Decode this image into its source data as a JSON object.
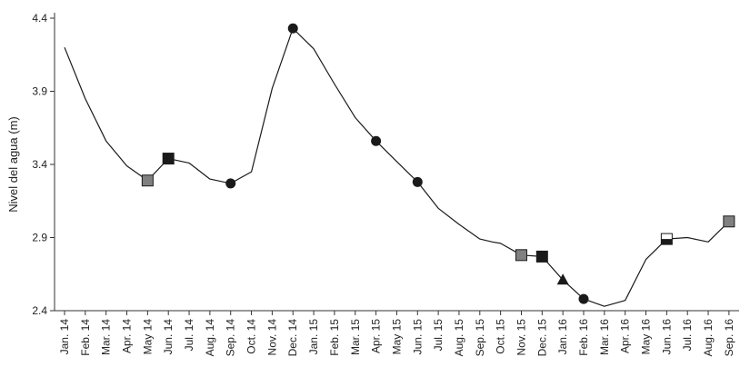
{
  "chart_data": {
    "type": "line",
    "title": "",
    "xlabel": "",
    "ylabel": "Nivel del agua (m)",
    "ylim": [
      2.4,
      4.4
    ],
    "yticks": [
      "2.4",
      "2.9",
      "3.4",
      "3.9",
      "4.4"
    ],
    "grid": false,
    "categories": [
      "Jan. 14",
      "Feb. 14",
      "Mar. 14",
      "Apr. 14",
      "May 14",
      "Jun. 14",
      "Jul. 14",
      "Aug. 14",
      "Sep. 14",
      "Oct. 14",
      "Nov. 14",
      "Dec. 14",
      "Jan. 15",
      "Feb. 15",
      "Mar. 15",
      "Apr. 15",
      "May 15",
      "Jun. 15",
      "Jul. 15",
      "Aug. 15",
      "Sep. 15",
      "Oct. 15",
      "Nov. 15",
      "Dec. 15",
      "Jan. 16",
      "Feb. 16",
      "Mar. 16",
      "Apr. 16",
      "May 16",
      "Jun. 16",
      "Jul. 16",
      "Aug. 16",
      "Sep. 16"
    ],
    "line": [
      {
        "x": 0.0,
        "y": 4.2
      },
      {
        "x": 1.0,
        "y": 3.85
      },
      {
        "x": 2.0,
        "y": 3.56
      },
      {
        "x": 3.0,
        "y": 3.39
      },
      {
        "x": 4.0,
        "y": 3.29
      },
      {
        "x": 5.0,
        "y": 3.44
      },
      {
        "x": 6.0,
        "y": 3.41
      },
      {
        "x": 7.0,
        "y": 3.3
      },
      {
        "x": 8.0,
        "y": 3.27
      },
      {
        "x": 9.0,
        "y": 3.35
      },
      {
        "x": 10.0,
        "y": 3.92
      },
      {
        "x": 11.0,
        "y": 4.33
      },
      {
        "x": 12.0,
        "y": 4.19
      },
      {
        "x": 13.0,
        "y": 3.95
      },
      {
        "x": 14.0,
        "y": 3.72
      },
      {
        "x": 15.0,
        "y": 3.56
      },
      {
        "x": 16.0,
        "y": 3.42
      },
      {
        "x": 17.0,
        "y": 3.28
      },
      {
        "x": 18.0,
        "y": 3.1
      },
      {
        "x": 19.0,
        "y": 2.99
      },
      {
        "x": 20.0,
        "y": 2.89
      },
      {
        "x": 20.6,
        "y": 2.87
      },
      {
        "x": 21.0,
        "y": 2.86
      },
      {
        "x": 22.0,
        "y": 2.78
      },
      {
        "x": 23.0,
        "y": 2.77
      },
      {
        "x": 24.0,
        "y": 2.61
      },
      {
        "x": 25.0,
        "y": 2.48
      },
      {
        "x": 26.0,
        "y": 2.43
      },
      {
        "x": 27.0,
        "y": 2.47
      },
      {
        "x": 28.0,
        "y": 2.75
      },
      {
        "x": 29.0,
        "y": 2.89
      },
      {
        "x": 30.0,
        "y": 2.9
      },
      {
        "x": 31.0,
        "y": 2.87
      },
      {
        "x": 32.0,
        "y": 3.01
      }
    ],
    "markers": [
      {
        "x": 4.0,
        "y": 3.29,
        "shape": "square",
        "fill": "#808080"
      },
      {
        "x": 5.0,
        "y": 3.44,
        "shape": "square",
        "fill": "#1a1a1a"
      },
      {
        "x": 8.0,
        "y": 3.27,
        "shape": "circle",
        "fill": "#1a1a1a"
      },
      {
        "x": 11.0,
        "y": 4.33,
        "shape": "circle",
        "fill": "#1a1a1a"
      },
      {
        "x": 15.0,
        "y": 3.56,
        "shape": "circle",
        "fill": "#1a1a1a"
      },
      {
        "x": 17.0,
        "y": 3.28,
        "shape": "circle",
        "fill": "#1a1a1a"
      },
      {
        "x": 22.0,
        "y": 2.78,
        "shape": "square",
        "fill": "#808080"
      },
      {
        "x": 23.0,
        "y": 2.77,
        "shape": "square",
        "fill": "#1a1a1a"
      },
      {
        "x": 24.0,
        "y": 2.61,
        "shape": "triangle",
        "fill": "#1a1a1a"
      },
      {
        "x": 25.0,
        "y": 2.48,
        "shape": "circle",
        "fill": "#1a1a1a"
      },
      {
        "x": 29.0,
        "y": 2.89,
        "shape": "half-square",
        "fill": "#1a1a1a"
      },
      {
        "x": 32.0,
        "y": 3.01,
        "shape": "square",
        "fill": "#808080"
      }
    ],
    "colors": {
      "line": "#1a1a1a",
      "axis": "#333333"
    }
  }
}
